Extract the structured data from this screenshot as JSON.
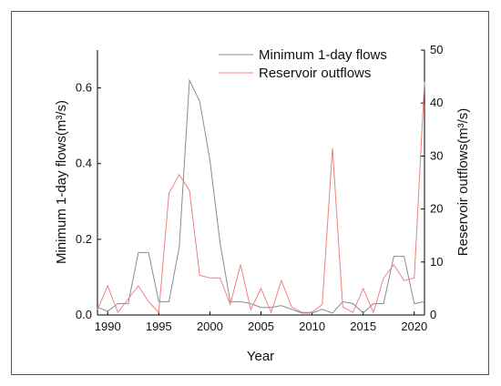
{
  "chart_data": {
    "type": "line",
    "xlabel": "Year",
    "ylabel_left": "Minimum 1-day flows(m³/s)",
    "ylabel_right": "Reservoir outflows(m³/s)",
    "xlim": [
      1989,
      2021
    ],
    "ylim_left": [
      0,
      0.7
    ],
    "ylim_right": [
      0,
      50
    ],
    "x_ticks": [
      1990,
      1995,
      2000,
      2005,
      2010,
      2015,
      2020
    ],
    "y_ticks_left": [
      0.0,
      0.2,
      0.4,
      0.6
    ],
    "y_ticks_right": [
      0,
      10,
      20,
      30,
      40,
      50
    ],
    "y_tick_labels_left": [
      "0.0",
      "0.2",
      "0.4",
      "0.6"
    ],
    "grid": false,
    "legend_position": "top-right",
    "series": [
      {
        "name": "Minimum 1-day flows",
        "axis": "left",
        "color": "#8c8c8c",
        "x": [
          1989,
          1990,
          1991,
          1992,
          1993,
          1994,
          1995,
          1996,
          1997,
          1998,
          1999,
          2000,
          2001,
          2002,
          2003,
          2004,
          2005,
          2006,
          2007,
          2008,
          2009,
          2010,
          2011,
          2012,
          2013,
          2014,
          2015,
          2016,
          2017,
          2018,
          2019,
          2020,
          2021
        ],
        "values": [
          0.02,
          0.01,
          0.03,
          0.03,
          0.165,
          0.165,
          0.035,
          0.035,
          0.18,
          0.62,
          0.565,
          0.41,
          0.19,
          0.035,
          0.035,
          0.03,
          0.02,
          0.02,
          0.025,
          0.015,
          0.005,
          0.005,
          0.015,
          0.005,
          0.035,
          0.03,
          0.005,
          0.03,
          0.03,
          0.155,
          0.155,
          0.03,
          0.035
        ]
      },
      {
        "name": "Reservoir outflows",
        "axis": "right",
        "color": "#f08080",
        "x": [
          1989,
          1990,
          1991,
          1992,
          1993,
          1994,
          1995,
          1996,
          1997,
          1998,
          1999,
          2000,
          2001,
          2002,
          2003,
          2004,
          2005,
          2006,
          2007,
          2008,
          2009,
          2010,
          2011,
          2012,
          2013,
          2014,
          2015,
          2016,
          2017,
          2018,
          2019,
          2020,
          2021
        ],
        "values": [
          1,
          5.5,
          0.5,
          3,
          5.5,
          2.5,
          0.5,
          23,
          26.5,
          23.5,
          7.5,
          7,
          7,
          2,
          9.5,
          1,
          5,
          0.5,
          6.5,
          1.5,
          0.5,
          0.5,
          2,
          31.5,
          1.5,
          0.5,
          5,
          0.5,
          7,
          9.5,
          6.5,
          7,
          44
        ]
      }
    ]
  }
}
